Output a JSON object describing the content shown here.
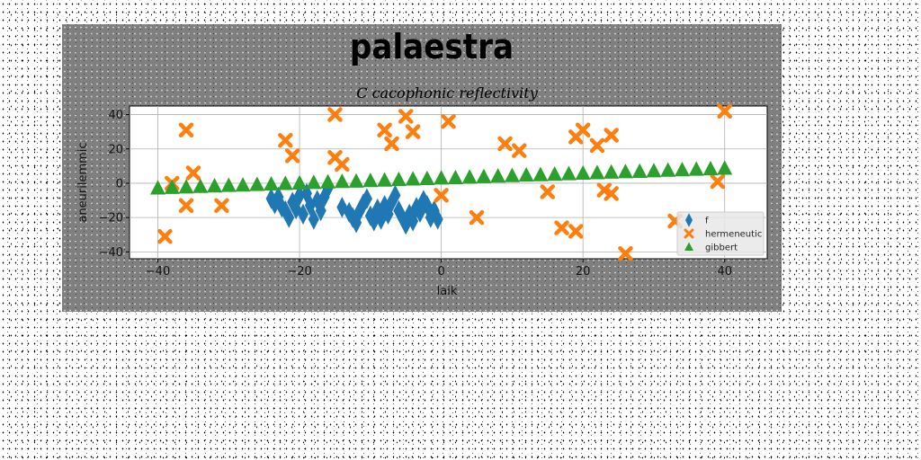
{
  "chart_data": {
    "type": "scatter",
    "suptitle": "palaestra",
    "title": "C cacophonic reflectivity",
    "xlabel": "laik",
    "ylabel": "aneurilemmic",
    "xlim": [
      -44,
      46
    ],
    "ylim": [
      -44,
      45
    ],
    "xticks": [
      -40,
      -20,
      0,
      20,
      40
    ],
    "yticks": [
      -40,
      -20,
      0,
      20,
      40
    ],
    "grid": true,
    "legend_position": "lower-right",
    "series": [
      {
        "name": "f",
        "marker": "diamond",
        "color": "#1f77b4",
        "points": [
          [
            -24,
            -9
          ],
          [
            -23.5,
            -12
          ],
          [
            -23,
            -8
          ],
          [
            -22.5,
            -14
          ],
          [
            -22,
            -16
          ],
          [
            -21.5,
            -20
          ],
          [
            -21,
            -11
          ],
          [
            -20.5,
            -15
          ],
          [
            -20,
            -7
          ],
          [
            -19.5,
            -18
          ],
          [
            -19,
            -6
          ],
          [
            -18.5,
            -13
          ],
          [
            -18,
            -21
          ],
          [
            -17.5,
            -10
          ],
          [
            -17,
            -16
          ],
          [
            -16.5,
            -8
          ],
          [
            -16,
            -3
          ],
          [
            -14,
            -14
          ],
          [
            -13,
            -17
          ],
          [
            -12.5,
            -20
          ],
          [
            -12,
            -23
          ],
          [
            -11.5,
            -16
          ],
          [
            -11,
            -12
          ],
          [
            -10.5,
            -9
          ],
          [
            -10,
            -19
          ],
          [
            -9.5,
            -22
          ],
          [
            -9,
            -15
          ],
          [
            -8.5,
            -21
          ],
          [
            -8,
            -13
          ],
          [
            -7.5,
            -18
          ],
          [
            -7,
            -11
          ],
          [
            -6.5,
            -7
          ],
          [
            -6,
            -16
          ],
          [
            -5.5,
            -20
          ],
          [
            -5,
            -24
          ],
          [
            -4.5,
            -18
          ],
          [
            -4,
            -22
          ],
          [
            -3.5,
            -14
          ],
          [
            -3,
            -17
          ],
          [
            -2.5,
            -10
          ],
          [
            -2,
            -13
          ],
          [
            -1.5,
            -20
          ],
          [
            -1,
            -16
          ],
          [
            -0.5,
            -21
          ]
        ]
      },
      {
        "name": "hermeneutic",
        "marker": "x",
        "color": "#ff7f0e",
        "points": [
          [
            -39,
            -31
          ],
          [
            -38,
            0
          ],
          [
            -36,
            31
          ],
          [
            -36,
            -13
          ],
          [
            -35,
            6
          ],
          [
            -31,
            -13
          ],
          [
            -22,
            25
          ],
          [
            -21,
            16
          ],
          [
            -15,
            40
          ],
          [
            -15,
            15
          ],
          [
            -14,
            11
          ],
          [
            -8,
            31
          ],
          [
            -7,
            23
          ],
          [
            -5,
            39
          ],
          [
            -4,
            30
          ],
          [
            0,
            -7
          ],
          [
            1,
            36
          ],
          [
            5,
            -20
          ],
          [
            9,
            23
          ],
          [
            11,
            19
          ],
          [
            15,
            -5
          ],
          [
            17,
            -26
          ],
          [
            19,
            27
          ],
          [
            19,
            -28
          ],
          [
            20,
            31
          ],
          [
            22,
            22
          ],
          [
            23,
            -4
          ],
          [
            24,
            28
          ],
          [
            24,
            -6
          ],
          [
            26,
            -41
          ],
          [
            33,
            -22
          ],
          [
            39,
            1
          ],
          [
            40,
            42
          ]
        ]
      },
      {
        "name": "gibbert",
        "marker": "triangle",
        "color": "#2ca02c",
        "points": [
          [
            -40,
            -3
          ],
          [
            -38,
            -2.7
          ],
          [
            -36,
            -2.4
          ],
          [
            -34,
            -2.1
          ],
          [
            -32,
            -1.8
          ],
          [
            -30,
            -1.5
          ],
          [
            -28,
            -1.3
          ],
          [
            -26,
            -1
          ],
          [
            -24,
            -0.7
          ],
          [
            -22,
            -0.4
          ],
          [
            -20,
            -0.1
          ],
          [
            -18,
            0.2
          ],
          [
            -16,
            0.5
          ],
          [
            -14,
            0.8
          ],
          [
            -12,
            1
          ],
          [
            -10,
            1.3
          ],
          [
            -8,
            1.6
          ],
          [
            -6,
            1.9
          ],
          [
            -4,
            2.2
          ],
          [
            -2,
            2.5
          ],
          [
            0,
            2.8
          ],
          [
            2,
            3
          ],
          [
            4,
            3.3
          ],
          [
            6,
            3.6
          ],
          [
            8,
            3.9
          ],
          [
            10,
            4.2
          ],
          [
            12,
            4.5
          ],
          [
            14,
            4.7
          ],
          [
            16,
            5
          ],
          [
            18,
            5.3
          ],
          [
            20,
            5.6
          ],
          [
            22,
            5.9
          ],
          [
            24,
            6.2
          ],
          [
            26,
            6.5
          ],
          [
            28,
            6.7
          ],
          [
            30,
            7
          ],
          [
            32,
            7.3
          ],
          [
            34,
            7.6
          ],
          [
            36,
            7.9
          ],
          [
            38,
            8.2
          ],
          [
            40,
            8.5
          ]
        ]
      }
    ]
  }
}
